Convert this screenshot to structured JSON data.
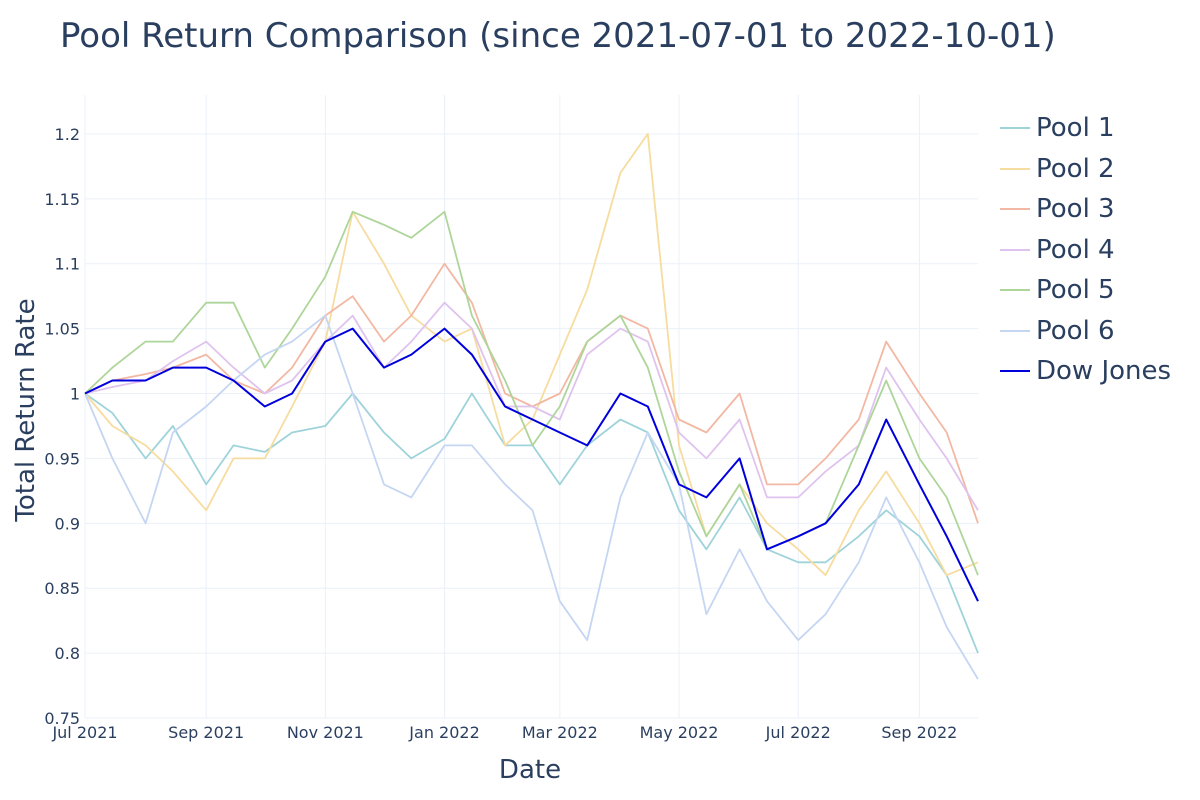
{
  "title": "Pool Return Comparison (since 2021-07-01 to 2022-10-01)",
  "chart_data": {
    "type": "line",
    "title": "Pool Return Comparison (since 2021-07-01 to 2022-10-01)",
    "xlabel": "Date",
    "ylabel": "Total Return Rate",
    "xlim": [
      "2021-07-01",
      "2022-10-01"
    ],
    "ylim": [
      0.75,
      1.23
    ],
    "x_ticks": [
      "Jul 2021",
      "Sep 2021",
      "Nov 2021",
      "Jan 2022",
      "Mar 2022",
      "May 2022",
      "Jul 2022",
      "Sep 2022"
    ],
    "y_ticks": [
      "0.75",
      "0.8",
      "0.85",
      "0.9",
      "0.95",
      "1",
      "1.05",
      "1.1",
      "1.15",
      "1.2"
    ],
    "grid": true,
    "legend_position": "right",
    "x": [
      "2021-07-01",
      "2021-07-15",
      "2021-08-01",
      "2021-08-15",
      "2021-09-01",
      "2021-09-15",
      "2021-10-01",
      "2021-10-15",
      "2021-11-01",
      "2021-11-15",
      "2021-12-01",
      "2021-12-15",
      "2022-01-01",
      "2022-01-15",
      "2022-02-01",
      "2022-02-15",
      "2022-03-01",
      "2022-03-15",
      "2022-04-01",
      "2022-04-15",
      "2022-05-01",
      "2022-05-15",
      "2022-06-01",
      "2022-06-15",
      "2022-07-01",
      "2022-07-15",
      "2022-08-01",
      "2022-08-15",
      "2022-09-01",
      "2022-09-15",
      "2022-10-01"
    ],
    "series": [
      {
        "name": "Pool 1",
        "color": "#9fd3da",
        "values": [
          1.0,
          0.985,
          0.95,
          0.975,
          0.93,
          0.96,
          0.955,
          0.97,
          0.975,
          1.0,
          0.97,
          0.95,
          0.965,
          1.0,
          0.96,
          0.96,
          0.93,
          0.96,
          0.98,
          0.97,
          0.91,
          0.88,
          0.92,
          0.88,
          0.87,
          0.87,
          0.89,
          0.91,
          0.89,
          0.86,
          0.8
        ]
      },
      {
        "name": "Pool 2",
        "color": "#f7dc9f",
        "values": [
          1.0,
          0.975,
          0.96,
          0.94,
          0.91,
          0.95,
          0.95,
          0.99,
          1.04,
          1.14,
          1.1,
          1.06,
          1.04,
          1.05,
          0.96,
          0.98,
          1.03,
          1.08,
          1.17,
          1.2,
          0.96,
          0.89,
          0.93,
          0.9,
          0.88,
          0.86,
          0.91,
          0.94,
          0.9,
          0.86,
          0.87
        ]
      },
      {
        "name": "Pool 3",
        "color": "#f2b8a3",
        "values": [
          1.0,
          1.01,
          1.015,
          1.02,
          1.03,
          1.01,
          1.0,
          1.02,
          1.06,
          1.075,
          1.04,
          1.06,
          1.1,
          1.07,
          1.0,
          0.99,
          1.0,
          1.04,
          1.06,
          1.05,
          0.98,
          0.97,
          1.0,
          0.93,
          0.93,
          0.95,
          0.98,
          1.04,
          1.0,
          0.97,
          0.9
        ]
      },
      {
        "name": "Pool 4",
        "color": "#dfc3ee",
        "values": [
          1.0,
          1.005,
          1.01,
          1.025,
          1.04,
          1.02,
          1.0,
          1.01,
          1.04,
          1.06,
          1.02,
          1.04,
          1.07,
          1.05,
          0.99,
          0.99,
          0.98,
          1.03,
          1.05,
          1.04,
          0.97,
          0.95,
          0.98,
          0.92,
          0.92,
          0.94,
          0.96,
          1.02,
          0.98,
          0.95,
          0.91
        ]
      },
      {
        "name": "Pool 5",
        "color": "#aed59a",
        "values": [
          1.0,
          1.02,
          1.04,
          1.04,
          1.07,
          1.07,
          1.02,
          1.05,
          1.09,
          1.14,
          1.13,
          1.12,
          1.14,
          1.06,
          1.01,
          0.96,
          0.99,
          1.04,
          1.06,
          1.02,
          0.94,
          0.89,
          0.93,
          0.88,
          0.89,
          0.9,
          0.96,
          1.01,
          0.95,
          0.92,
          0.86
        ]
      },
      {
        "name": "Pool 6",
        "color": "#c5d6f2",
        "values": [
          1.0,
          0.95,
          0.9,
          0.97,
          0.99,
          1.01,
          1.03,
          1.04,
          1.06,
          1.0,
          0.93,
          0.92,
          0.96,
          0.96,
          0.93,
          0.91,
          0.84,
          0.81,
          0.92,
          0.97,
          0.93,
          0.83,
          0.88,
          0.84,
          0.81,
          0.83,
          0.87,
          0.92,
          0.87,
          0.82,
          0.78
        ]
      },
      {
        "name": "Dow Jones",
        "color": "#0000dd",
        "values": [
          1.0,
          1.01,
          1.01,
          1.02,
          1.02,
          1.01,
          0.99,
          1.0,
          1.04,
          1.05,
          1.02,
          1.03,
          1.05,
          1.03,
          0.99,
          0.98,
          0.97,
          0.96,
          1.0,
          0.99,
          0.93,
          0.92,
          0.95,
          0.88,
          0.89,
          0.9,
          0.93,
          0.98,
          0.93,
          0.89,
          0.84
        ]
      }
    ]
  }
}
